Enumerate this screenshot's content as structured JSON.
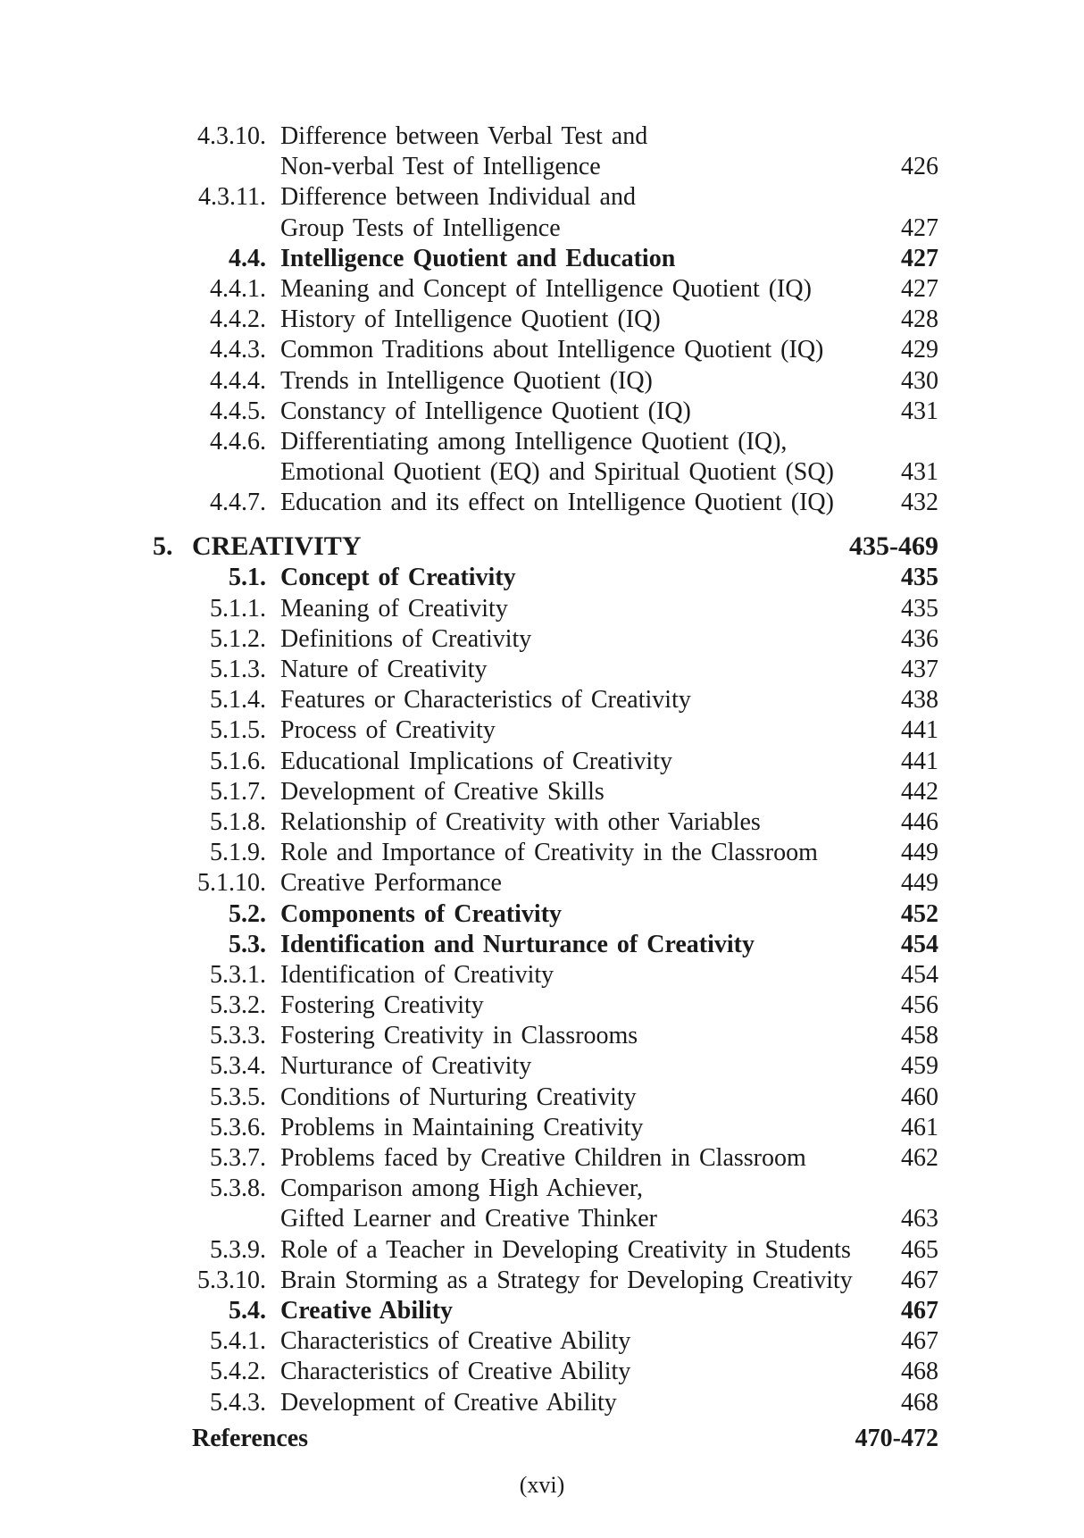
{
  "entries_before": [
    {
      "num": "4.3.10.",
      "title": "Difference between Verbal Test and",
      "cont": "Non-verbal Test of Intelligence",
      "page": "426"
    },
    {
      "num": "4.3.11.",
      "title": "Difference between Individual and",
      "cont": "Group Tests of Intelligence",
      "page": "427"
    },
    {
      "num": "4.4.",
      "title": "Intelligence Quotient and Education",
      "page": "427",
      "bold": true
    },
    {
      "num": "4.4.1.",
      "title": "Meaning and Concept of Intelligence Quotient (IQ)",
      "page": "427"
    },
    {
      "num": "4.4.2.",
      "title": "History of Intelligence Quotient (IQ)",
      "page": "428"
    },
    {
      "num": "4.4.3.",
      "title": "Common Traditions about Intelligence Quotient (IQ)",
      "page": "429"
    },
    {
      "num": "4.4.4.",
      "title": "Trends in Intelligence Quotient (IQ)",
      "page": "430"
    },
    {
      "num": "4.4.5.",
      "title": "Constancy of Intelligence Quotient (IQ)",
      "page": "431"
    },
    {
      "num": "4.4.6.",
      "title": "Differentiating among Intelligence Quotient (IQ),",
      "cont": "Emotional Quotient (EQ) and Spiritual Quotient (SQ)",
      "page": "431"
    },
    {
      "num": "4.4.7.",
      "title": "Education and its effect on Intelligence Quotient (IQ)",
      "page": "432"
    }
  ],
  "chapter": {
    "num": "5.",
    "title": "CREATIVITY",
    "pages": "435-469"
  },
  "entries_after": [
    {
      "num": "5.1.",
      "title": "Concept of Creativity",
      "page": "435",
      "bold": true
    },
    {
      "num": "5.1.1.",
      "title": "Meaning of Creativity",
      "page": "435"
    },
    {
      "num": "5.1.2.",
      "title": "Definitions of Creativity",
      "page": "436"
    },
    {
      "num": "5.1.3.",
      "title": "Nature of Creativity",
      "page": "437"
    },
    {
      "num": "5.1.4.",
      "title": "Features or Characteristics of Creativity",
      "page": "438"
    },
    {
      "num": "5.1.5.",
      "title": "Process of Creativity",
      "page": "441"
    },
    {
      "num": "5.1.6.",
      "title": "Educational Implications of Creativity",
      "page": "441"
    },
    {
      "num": "5.1.7.",
      "title": "Development of Creative Skills",
      "page": "442"
    },
    {
      "num": "5.1.8.",
      "title": "Relationship of Creativity with other Variables",
      "page": "446"
    },
    {
      "num": "5.1.9.",
      "title": "Role and Importance of Creativity in the Classroom",
      "page": "449"
    },
    {
      "num": "5.1.10.",
      "title": "Creative Performance",
      "page": "449"
    },
    {
      "num": "5.2.",
      "title": "Components of Creativity",
      "page": "452",
      "bold": true
    },
    {
      "num": "5.3.",
      "title": "Identification and Nurturance of Creativity",
      "page": "454",
      "bold": true
    },
    {
      "num": "5.3.1.",
      "title": "Identification of Creativity",
      "page": "454"
    },
    {
      "num": "5.3.2.",
      "title": "Fostering Creativity",
      "page": "456"
    },
    {
      "num": "5.3.3.",
      "title": "Fostering Creativity in Classrooms",
      "page": "458"
    },
    {
      "num": "5.3.4.",
      "title": "Nurturance of Creativity",
      "page": "459"
    },
    {
      "num": "5.3.5.",
      "title": "Conditions of Nurturing Creativity",
      "page": "460"
    },
    {
      "num": "5.3.6.",
      "title": "Problems in Maintaining Creativity",
      "page": "461"
    },
    {
      "num": "5.3.7.",
      "title": "Problems faced by Creative Children in Classroom",
      "page": "462"
    },
    {
      "num": "5.3.8.",
      "title": "Comparison among High Achiever,",
      "cont": "Gifted Learner and Creative Thinker",
      "page": "463"
    },
    {
      "num": "5.3.9.",
      "title": "Role of a Teacher in Developing Creativity in Students",
      "page": "465"
    },
    {
      "num": "5.3.10.",
      "title": "Brain Storming as a Strategy for Developing Creativity",
      "page": "467"
    },
    {
      "num": "5.4.",
      "title": "Creative Ability",
      "page": "467",
      "bold": true
    },
    {
      "num": "5.4.1.",
      "title": "Characteristics of Creative Ability",
      "page": "467"
    },
    {
      "num": "5.4.2.",
      "title": "Characteristics of Creative Ability",
      "page": "468"
    },
    {
      "num": "5.4.3.",
      "title": "Development of Creative Ability",
      "page": "468"
    }
  ],
  "references": {
    "title": "References",
    "pages": "470-472"
  },
  "folio": "(xvi)"
}
